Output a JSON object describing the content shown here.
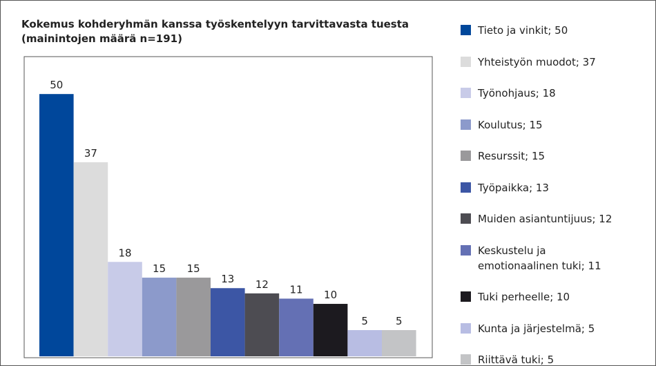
{
  "chart_data": {
    "type": "bar",
    "title": "Kokemus kohderyhmän kanssa työskentelyyn tarvittavasta tuesta\n(mainintojen määrä n=191)",
    "categories": [
      "Tieto ja vinkit; 50",
      "Yhteistyön muodot; 37",
      "Työnohjaus; 18",
      "Koulutus; 15",
      "Resurssit; 15",
      "Työpaikka; 13",
      "Muiden asiantuntijuus; 12",
      "Keskustelu ja\nemotionaalinen tuki; 11",
      "Tuki perheelle; 10",
      "Kunta ja järjestelmä; 5",
      "Riittävä tuki; 5"
    ],
    "values": [
      50,
      37,
      18,
      15,
      15,
      13,
      12,
      11,
      10,
      5,
      5
    ],
    "colors": [
      "#00479b",
      "#dcdcdc",
      "#c8cbe8",
      "#8c9acb",
      "#9a999b",
      "#3c56a5",
      "#4d4c52",
      "#6470b4",
      "#1c1a1f",
      "#b8bde3",
      "#c3c4c6"
    ],
    "ylim": [
      0,
      57
    ]
  }
}
